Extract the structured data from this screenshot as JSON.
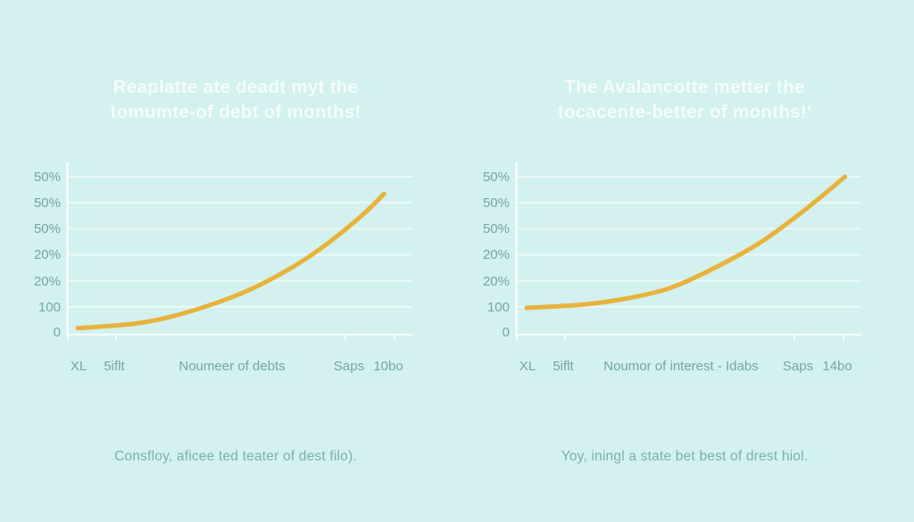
{
  "colors": {
    "background": "#d3f1ef",
    "curve": "#e8b23c",
    "title_text": "#f2fdfc",
    "axis_text": "#76a6a6",
    "caption_text": "#7db0ae",
    "grid": "#ffffff"
  },
  "chart_data": [
    {
      "type": "line",
      "title": "Reaplatte ate deadt myt the tomumte-of debt of months!",
      "title_line1": "Reaplatte ate deadt myt the",
      "title_line2": "tomumte-of debt of months!",
      "xlabel": "Noumeer of debts",
      "ylabel": "",
      "y_tick_labels": [
        "50%",
        "50%",
        "50%",
        "20%",
        "20%",
        "100",
        "0"
      ],
      "x_tick_labels": [
        "XL",
        "5iflt",
        "Noumeer of debts",
        "Saps",
        "10bo"
      ],
      "caption": "Consfloy, aficee ted teater of dest filo).",
      "line_color": "#e8b23c",
      "grid": true,
      "legend": "none",
      "ylim_norm": [
        0,
        1
      ],
      "points_norm": [
        [
          0.03,
          0.03
        ],
        [
          0.2,
          0.06
        ],
        [
          0.33,
          0.12
        ],
        [
          0.48,
          0.23
        ],
        [
          0.58,
          0.33
        ],
        [
          0.69,
          0.47
        ],
        [
          0.79,
          0.63
        ],
        [
          0.87,
          0.78
        ],
        [
          0.92,
          0.89
        ]
      ]
    },
    {
      "type": "line",
      "title": "The Avalancotte metter the tocacente-better of months!'",
      "title_line1": "The Avalancotte metter the",
      "title_line2": "tocacente-better of months!'",
      "xlabel": "Noumor of interest - Idabs",
      "ylabel": "",
      "y_tick_labels": [
        "50%",
        "50%",
        "50%",
        "20%",
        "20%",
        "100",
        "0"
      ],
      "x_tick_labels": [
        "XL",
        "5iflt",
        "Noumor of interest - Idabs",
        "Saps",
        "14bo"
      ],
      "caption": "Yoy, iningl a state bet best of drest hiol.",
      "line_color": "#e8b23c",
      "grid": true,
      "legend": "none",
      "ylim_norm": [
        0,
        1
      ],
      "points_norm": [
        [
          0.03,
          0.16
        ],
        [
          0.19,
          0.18
        ],
        [
          0.32,
          0.22
        ],
        [
          0.45,
          0.29
        ],
        [
          0.58,
          0.42
        ],
        [
          0.71,
          0.58
        ],
        [
          0.84,
          0.79
        ],
        [
          0.955,
          1.0
        ]
      ]
    }
  ]
}
